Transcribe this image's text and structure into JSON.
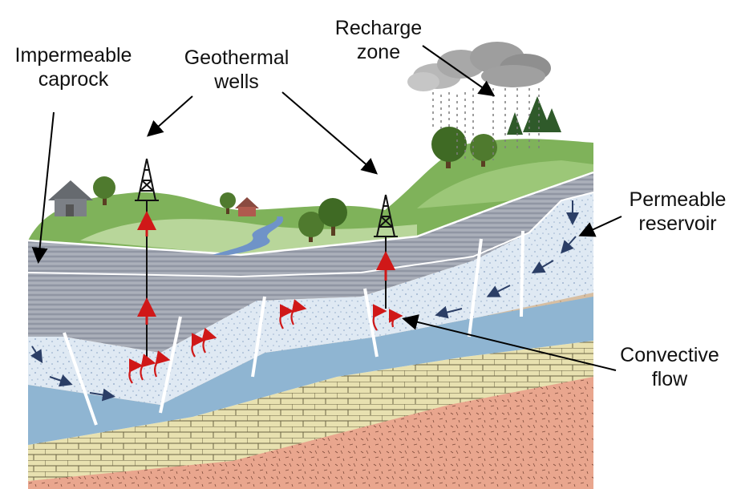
{
  "labels": {
    "impermeable_caprock": [
      "Impermeable",
      "caprock"
    ],
    "geothermal_wells": [
      "Geothermal",
      "wells"
    ],
    "recharge_zone": [
      "Recharge",
      "zone"
    ],
    "permeable_reservoir": [
      "Permeable",
      "reservoir"
    ],
    "convective_flow": [
      "Convective",
      "flow"
    ]
  },
  "colors": {
    "sky": "#ffffff",
    "hills_dark": "#7fb25a",
    "hills_light": "#b8d69a",
    "caprock_grey": "#9a9fab",
    "sandstone_tan": "#d7bfa3",
    "reservoir_light": "#dfe9f3",
    "aquifer_blue": "#8fb5d2",
    "limestone_yellow": "#e8e1b0",
    "granite_red": "#e9a68e",
    "hot_flow": "#d01818",
    "cold_flow": "#2b3e66",
    "river": "#6f93c8"
  },
  "icons": [
    "house-icon",
    "tree-icon",
    "drilling-rig-icon",
    "rain-cloud-icon",
    "pine-tree-icon"
  ]
}
